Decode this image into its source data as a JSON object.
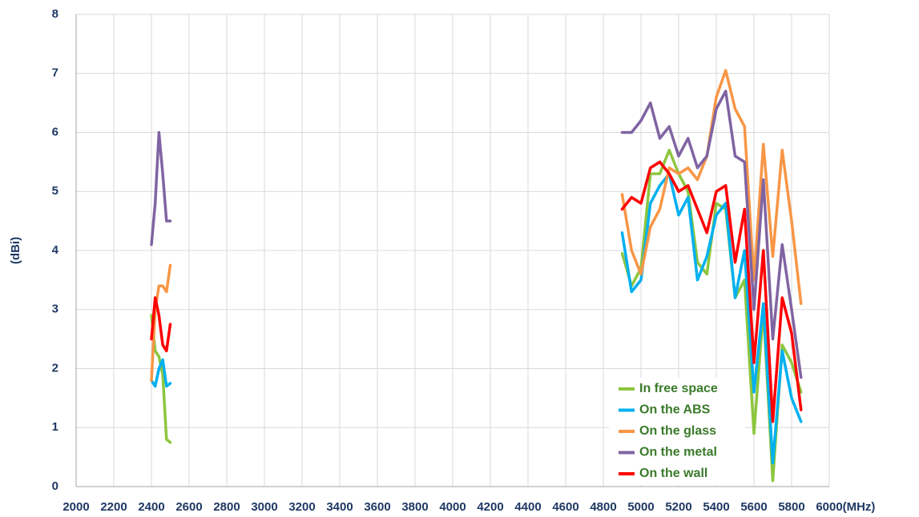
{
  "chart_data": {
    "type": "line",
    "x_label": "(MHz)",
    "y_label": "(dBi)",
    "x": [
      2400,
      2420,
      2440,
      2460,
      2480,
      2500,
      4000,
      4900,
      4950,
      5000,
      5050,
      5100,
      5150,
      5200,
      5250,
      5300,
      5350,
      5400,
      5450,
      5500,
      5550,
      5600,
      5650,
      5700,
      5750,
      5800,
      5850
    ],
    "series": [
      {
        "name": "In free space",
        "color": "#8dc63f",
        "values": [
          2.9,
          2.3,
          2.2,
          1.9,
          0.8,
          0.75,
          null,
          3.95,
          3.4,
          3.7,
          5.3,
          5.3,
          5.7,
          5.3,
          5.0,
          3.8,
          3.6,
          4.8,
          4.7,
          3.2,
          3.5,
          0.9,
          3.0,
          0.1,
          2.4,
          2.1,
          1.6
        ]
      },
      {
        "name": "On the ABS",
        "color": "#00b0f0",
        "values": [
          1.8,
          1.7,
          2.0,
          2.15,
          1.7,
          1.75,
          null,
          4.3,
          3.3,
          3.5,
          4.8,
          5.1,
          5.3,
          4.6,
          4.9,
          3.5,
          3.9,
          4.6,
          4.8,
          3.2,
          4.0,
          1.6,
          3.1,
          0.4,
          2.3,
          1.5,
          1.1
        ]
      },
      {
        "name": "On the glass",
        "color": "#f79646",
        "values": [
          1.8,
          3.0,
          3.4,
          3.4,
          3.3,
          3.75,
          null,
          4.95,
          4.0,
          3.6,
          4.4,
          4.7,
          5.4,
          5.3,
          5.4,
          5.2,
          5.6,
          6.6,
          7.05,
          6.4,
          6.1,
          3.5,
          5.8,
          3.9,
          5.7,
          4.5,
          3.1
        ]
      },
      {
        "name": "On the metal",
        "color": "#8064a2",
        "values": [
          4.1,
          4.8,
          6.0,
          5.3,
          4.5,
          4.5,
          null,
          6.0,
          6.0,
          6.2,
          6.5,
          5.9,
          6.1,
          5.6,
          5.9,
          5.4,
          5.6,
          6.4,
          6.7,
          5.6,
          5.5,
          3.0,
          5.2,
          2.5,
          4.1,
          3.0,
          1.85
        ]
      },
      {
        "name": "On the wall",
        "color": "#ff0000",
        "values": [
          2.5,
          3.2,
          2.9,
          2.4,
          2.3,
          2.75,
          null,
          4.7,
          4.9,
          4.8,
          5.4,
          5.5,
          5.3,
          5.0,
          5.1,
          4.7,
          4.3,
          5.0,
          5.1,
          3.8,
          4.7,
          2.1,
          4.0,
          1.1,
          3.2,
          2.6,
          1.3
        ]
      }
    ],
    "xlim": [
      2000,
      6000
    ],
    "xticks": [
      2000,
      2200,
      2400,
      2600,
      2800,
      3000,
      3200,
      3400,
      3600,
      3800,
      4000,
      4200,
      4400,
      4600,
      4800,
      5000,
      5200,
      5400,
      5600,
      5800,
      6000
    ],
    "ylim": [
      0,
      8
    ],
    "yticks": [
      0,
      1,
      2,
      3,
      4,
      5,
      6,
      7,
      8
    ],
    "grid": true,
    "legend": "lower right"
  }
}
